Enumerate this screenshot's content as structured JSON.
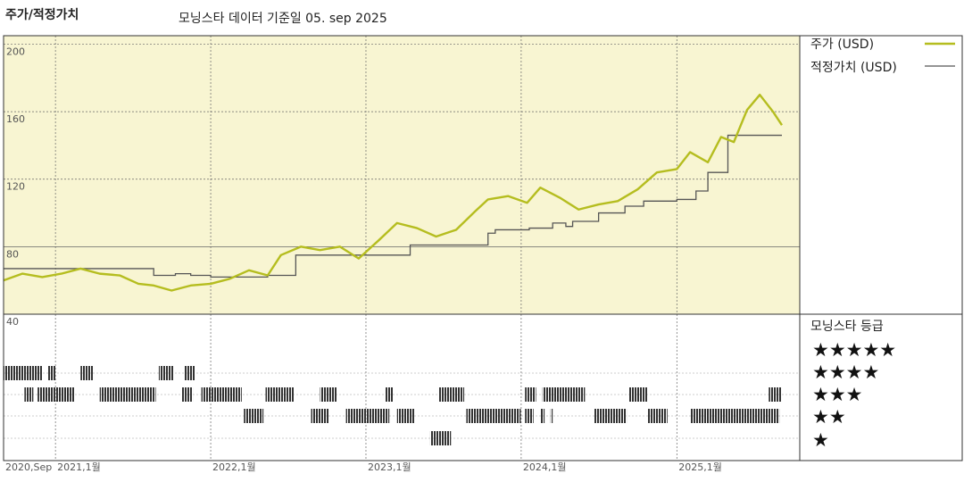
{
  "header": {
    "title": "주가/적정가치",
    "subtitle": "모닝스타 데이터 기준일 05. sep 2025"
  },
  "legend": {
    "price_label": "주가 (USD)",
    "fair_label": "적정가치 (USD)",
    "rating_label": "모닝스타 등급",
    "price_color": "#b5bd1f",
    "fair_color": "#555555"
  },
  "colors": {
    "plot_bg": "#f8f5d2",
    "grid": "#666666",
    "rating_bar": "#333333"
  },
  "chart_data": {
    "type": "line",
    "title": "주가/적정가치",
    "subtitle": "모닝스타 데이터 기준일 05. sep 2025",
    "ylim": [
      40,
      205
    ],
    "y_ticks": [
      40,
      80,
      120,
      160,
      200
    ],
    "x_range": [
      "2020-09-01",
      "2025-09-05"
    ],
    "x_ticks": [
      {
        "date": "2020-09-01",
        "label": "2020,Sep"
      },
      {
        "date": "2021-01-01",
        "label": "2021,1월"
      },
      {
        "date": "2022-01-01",
        "label": "2022,1월"
      },
      {
        "date": "2023-01-01",
        "label": "2023,1월"
      },
      {
        "date": "2024-01-01",
        "label": "2024,1월"
      },
      {
        "date": "2025-01-01",
        "label": "2025,1월"
      }
    ],
    "series": [
      {
        "name": "주가 (USD)",
        "dates": [
          "2020-09-01",
          "2020-10-15",
          "2020-12-01",
          "2021-01-15",
          "2021-03-01",
          "2021-04-15",
          "2021-06-01",
          "2021-07-15",
          "2021-08-20",
          "2021-10-01",
          "2021-11-15",
          "2022-01-01",
          "2022-02-15",
          "2022-04-01",
          "2022-05-15",
          "2022-06-15",
          "2022-08-01",
          "2022-09-15",
          "2022-11-01",
          "2022-12-15",
          "2023-02-01",
          "2023-03-15",
          "2023-05-01",
          "2023-06-15",
          "2023-08-01",
          "2023-09-15",
          "2023-10-15",
          "2023-12-01",
          "2024-01-15",
          "2024-02-15",
          "2024-04-01",
          "2024-05-15",
          "2024-07-01",
          "2024-08-15",
          "2024-10-01",
          "2024-11-15",
          "2025-01-01",
          "2025-02-01",
          "2025-03-15",
          "2025-04-15",
          "2025-05-15",
          "2025-06-15",
          "2025-07-15",
          "2025-08-15",
          "2025-09-05"
        ],
        "values": [
          60,
          64,
          62,
          64,
          67,
          64,
          63,
          58,
          57,
          54,
          57,
          58,
          61,
          66,
          63,
          75,
          80,
          78,
          80,
          73,
          84,
          94,
          91,
          86,
          90,
          101,
          108,
          110,
          106,
          115,
          109,
          102,
          105,
          107,
          114,
          124,
          126,
          136,
          130,
          145,
          142,
          161,
          170,
          160,
          152
        ]
      },
      {
        "name": "적정가치 (USD)",
        "dates": [
          "2020-09-01",
          "2021-07-20",
          "2021-08-20",
          "2021-10-10",
          "2021-11-15",
          "2022-01-01",
          "2022-03-15",
          "2022-05-15",
          "2022-06-15",
          "2022-07-20",
          "2023-02-01",
          "2023-04-15",
          "2023-06-15",
          "2023-08-01",
          "2023-10-15",
          "2023-11-01",
          "2024-01-20",
          "2024-03-15",
          "2024-04-15",
          "2024-05-01",
          "2024-07-01",
          "2024-09-01",
          "2024-10-15",
          "2025-01-01",
          "2025-02-15",
          "2025-03-15",
          "2025-05-01",
          "2025-09-05"
        ],
        "values": [
          67,
          67,
          63,
          64,
          63,
          62,
          62,
          63,
          63,
          75,
          75,
          81,
          81,
          81,
          88,
          90,
          91,
          94,
          92,
          95,
          100,
          104,
          107,
          108,
          113,
          124,
          146,
          146
        ]
      }
    ],
    "star_ratings": {
      "levels": [
        5,
        4,
        3,
        2,
        1
      ],
      "labels": [
        "★★★★★",
        "★★★★",
        "★★★",
        "★★",
        "★"
      ],
      "periods": [
        {
          "stars": 5,
          "start": "2020-09-01",
          "end": "2020-12-01"
        },
        {
          "stars": 5,
          "start": "2020-12-15",
          "end": "2021-01-01"
        },
        {
          "stars": 5,
          "start": "2021-03-01",
          "end": "2021-04-01"
        },
        {
          "stars": 5,
          "start": "2021-09-01",
          "end": "2021-10-05"
        },
        {
          "stars": 5,
          "start": "2021-11-01",
          "end": "2021-11-25"
        },
        {
          "stars": 4,
          "start": "2021-01-05",
          "end": "2021-01-10"
        },
        {
          "stars": 4,
          "start": "2021-01-20",
          "end": "2021-02-15"
        },
        {
          "stars": 3,
          "start": "2020-10-20",
          "end": "2020-11-10"
        },
        {
          "stars": 3,
          "start": "2020-11-20",
          "end": "2021-02-10"
        },
        {
          "stars": 3,
          "start": "2021-04-15",
          "end": "2021-08-25"
        },
        {
          "stars": 3,
          "start": "2021-10-25",
          "end": "2021-11-20"
        },
        {
          "stars": 3,
          "start": "2021-12-10",
          "end": "2022-03-15"
        },
        {
          "stars": 3,
          "start": "2022-05-10",
          "end": "2022-07-15"
        },
        {
          "stars": 3,
          "start": "2022-09-15",
          "end": "2022-10-25"
        },
        {
          "stars": 3,
          "start": "2023-02-15",
          "end": "2023-03-05"
        },
        {
          "stars": 3,
          "start": "2023-06-20",
          "end": "2023-08-20"
        },
        {
          "stars": 3,
          "start": "2024-01-10",
          "end": "2024-02-05"
        },
        {
          "stars": 3,
          "start": "2024-02-20",
          "end": "2024-05-30"
        },
        {
          "stars": 3,
          "start": "2024-09-10",
          "end": "2024-10-25"
        },
        {
          "stars": 3,
          "start": "2025-08-05",
          "end": "2025-09-05"
        },
        {
          "stars": 2,
          "start": "2022-03-20",
          "end": "2022-05-05"
        },
        {
          "stars": 2,
          "start": "2022-08-25",
          "end": "2022-10-05"
        },
        {
          "stars": 2,
          "start": "2022-11-15",
          "end": "2023-02-25"
        },
        {
          "stars": 2,
          "start": "2023-03-15",
          "end": "2023-04-25"
        },
        {
          "stars": 2,
          "start": "2023-08-25",
          "end": "2023-12-31"
        },
        {
          "stars": 2,
          "start": "2024-01-10",
          "end": "2024-01-30"
        },
        {
          "stars": 2,
          "start": "2024-02-15",
          "end": "2024-02-25"
        },
        {
          "stars": 2,
          "start": "2024-03-10",
          "end": "2024-03-15"
        },
        {
          "stars": 2,
          "start": "2024-06-20",
          "end": "2024-09-05"
        },
        {
          "stars": 2,
          "start": "2024-10-25",
          "end": "2024-12-10"
        },
        {
          "stars": 2,
          "start": "2025-02-01",
          "end": "2025-08-30"
        },
        {
          "stars": 1,
          "start": "2023-06-01",
          "end": "2023-07-20"
        }
      ]
    }
  }
}
